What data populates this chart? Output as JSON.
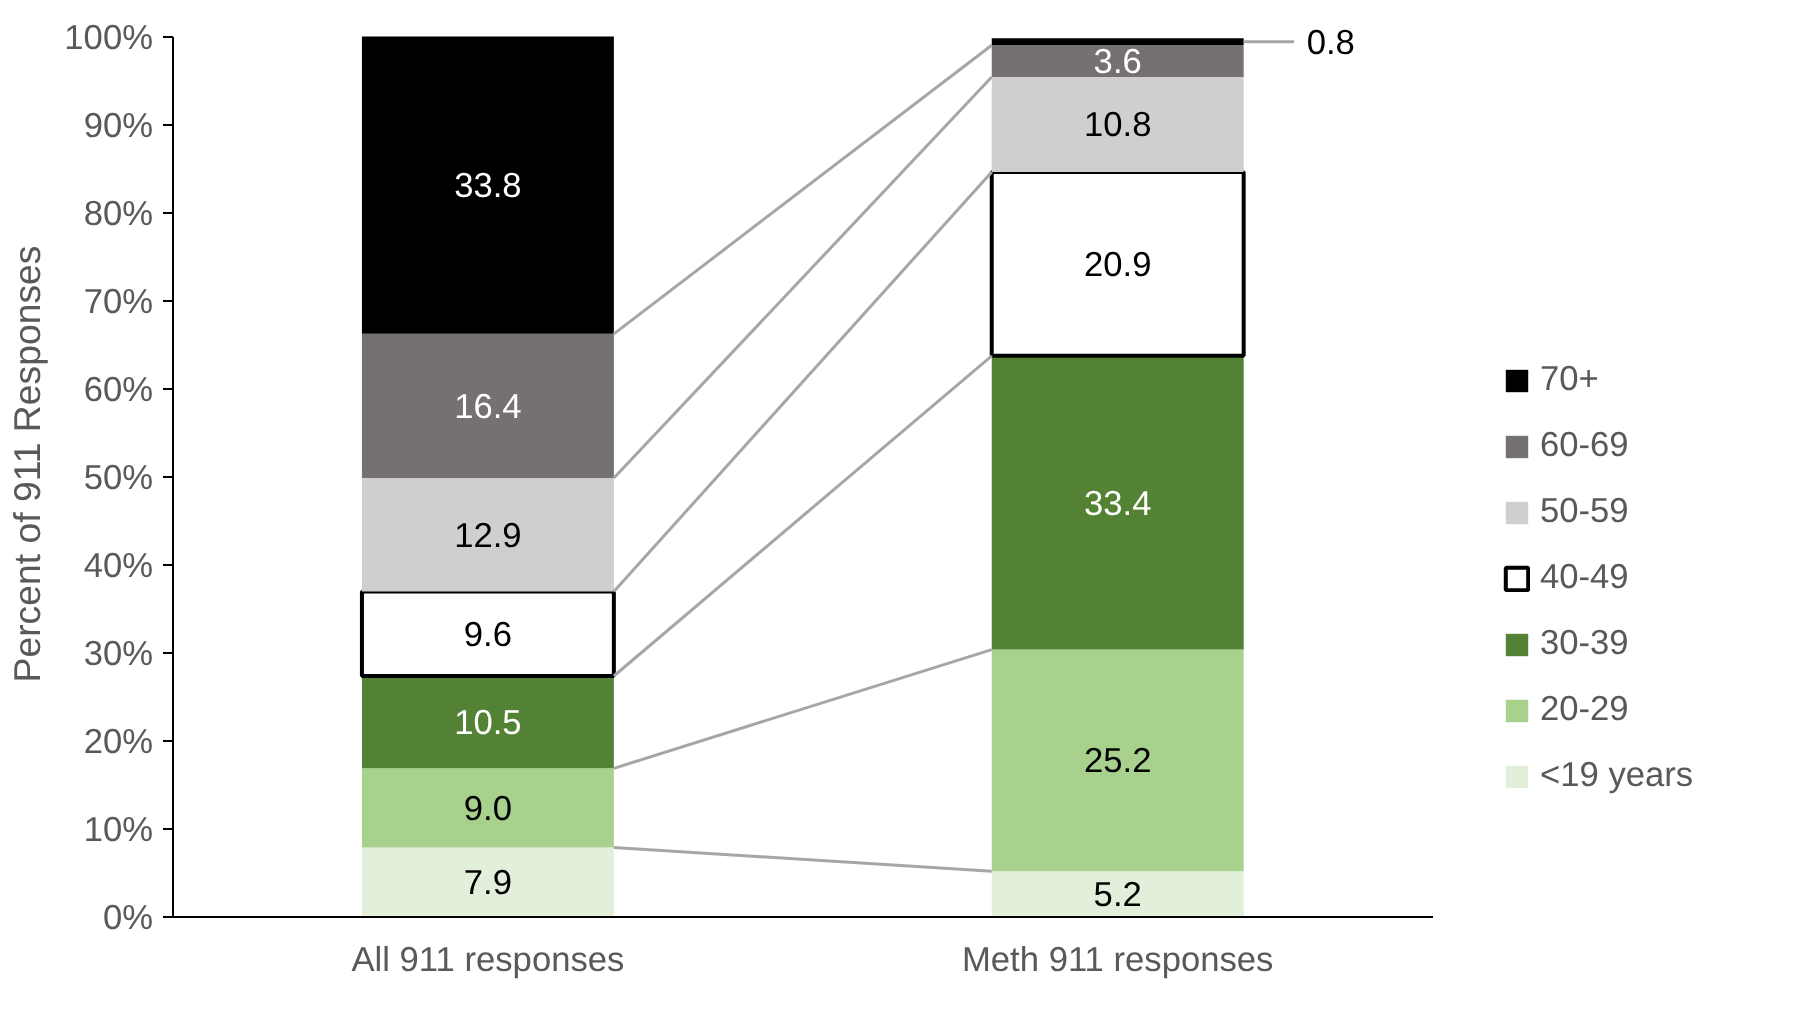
{
  "chart_data": {
    "type": "bar",
    "stacked": true,
    "ylabel": "Percent of 911 Responses",
    "categories": [
      "All 911 responses",
      "Meth 911 responses"
    ],
    "series": [
      {
        "name": "<19 years",
        "color": "#e2efda",
        "values": [
          7.9,
          5.2
        ],
        "value_labels": [
          "7.9",
          "5.2"
        ]
      },
      {
        "name": "20-29",
        "color": "#a9d18e",
        "values": [
          9.0,
          25.2
        ],
        "value_labels": [
          "9.0",
          "25.2"
        ]
      },
      {
        "name": "30-39",
        "color": "#548235",
        "values": [
          10.5,
          33.4
        ],
        "value_labels": [
          "10.5",
          "33.4"
        ]
      },
      {
        "name": "40-49",
        "color": "#ffffff",
        "values": [
          9.6,
          20.9
        ],
        "value_labels": [
          "9.6",
          "20.9"
        ]
      },
      {
        "name": "50-59",
        "color": "#d0cece",
        "values": [
          12.9,
          10.8
        ],
        "value_labels": [
          "12.9",
          "10.8"
        ]
      },
      {
        "name": "60-69",
        "color": "#767171",
        "values": [
          16.4,
          3.6
        ],
        "value_labels": [
          "16.4",
          "3.6"
        ]
      },
      {
        "name": "70+",
        "color": "#000000",
        "values": [
          33.8,
          0.8
        ],
        "value_labels": [
          "33.8",
          "0.8"
        ]
      }
    ],
    "ylim": [
      0,
      100
    ],
    "yticks": [
      {
        "value": 0,
        "label": "0%"
      },
      {
        "value": 10,
        "label": "10%"
      },
      {
        "value": 20,
        "label": "20%"
      },
      {
        "value": 30,
        "label": "30%"
      },
      {
        "value": 40,
        "label": "40%"
      },
      {
        "value": 50,
        "label": "50%"
      },
      {
        "value": 60,
        "label": "60%"
      },
      {
        "value": 70,
        "label": "70%"
      },
      {
        "value": 80,
        "label": "80%"
      },
      {
        "value": 90,
        "label": "90%"
      },
      {
        "value": 100,
        "label": "100%"
      }
    ],
    "grid": false,
    "legend": "right"
  }
}
